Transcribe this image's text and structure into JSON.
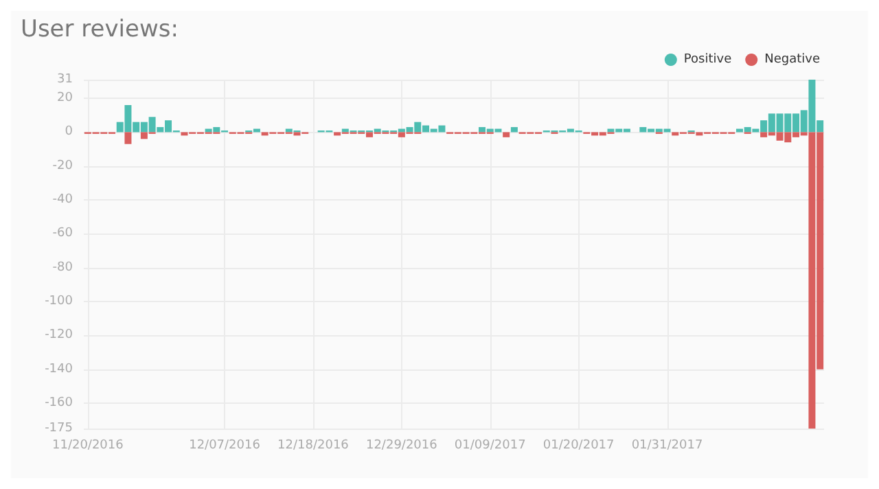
{
  "chart_data": {
    "type": "bar",
    "title": "User reviews:",
    "x": [
      "2016-11-20",
      "2016-11-21",
      "2016-11-22",
      "2016-11-23",
      "2016-11-24",
      "2016-11-25",
      "2016-11-26",
      "2016-11-27",
      "2016-11-28",
      "2016-11-29",
      "2016-11-30",
      "2016-12-01",
      "2016-12-02",
      "2016-12-03",
      "2016-12-04",
      "2016-12-05",
      "2016-12-06",
      "2016-12-07",
      "2016-12-08",
      "2016-12-09",
      "2016-12-10",
      "2016-12-11",
      "2016-12-12",
      "2016-12-13",
      "2016-12-14",
      "2016-12-15",
      "2016-12-16",
      "2016-12-17",
      "2016-12-18",
      "2016-12-19",
      "2016-12-20",
      "2016-12-21",
      "2016-12-22",
      "2016-12-23",
      "2016-12-24",
      "2016-12-25",
      "2016-12-26",
      "2016-12-27",
      "2016-12-28",
      "2016-12-29",
      "2016-12-30",
      "2016-12-31",
      "2017-01-01",
      "2017-01-02",
      "2017-01-03",
      "2017-01-04",
      "2017-01-05",
      "2017-01-06",
      "2017-01-07",
      "2017-01-08",
      "2017-01-09",
      "2017-01-10",
      "2017-01-11",
      "2017-01-12",
      "2017-01-13",
      "2017-01-14",
      "2017-01-15",
      "2017-01-16",
      "2017-01-17",
      "2017-01-18",
      "2017-01-19",
      "2017-01-20",
      "2017-01-21",
      "2017-01-22",
      "2017-01-23",
      "2017-01-24",
      "2017-01-25",
      "2017-01-26",
      "2017-01-27",
      "2017-01-28",
      "2017-01-29",
      "2017-01-30",
      "2017-01-31",
      "2017-02-01",
      "2017-02-02",
      "2017-02-03",
      "2017-02-04",
      "2017-02-05",
      "2017-02-06",
      "2017-02-07",
      "2017-02-08",
      "2017-02-09",
      "2017-02-10",
      "2017-02-11",
      "2017-02-12",
      "2017-02-13",
      "2017-02-14",
      "2017-02-15",
      "2017-02-16",
      "2017-02-17",
      "2017-02-18",
      "2017-02-19"
    ],
    "series": [
      {
        "name": "Positive",
        "color": "#4dbdb1",
        "values": [
          0,
          0,
          0,
          0,
          6,
          16,
          6,
          6,
          9,
          3,
          7,
          1,
          0,
          0,
          0,
          2,
          3,
          1,
          0,
          0,
          1,
          2,
          0,
          0,
          0,
          2,
          1,
          0,
          0,
          1,
          1,
          0,
          2,
          1,
          1,
          1,
          2,
          1,
          1,
          2,
          3,
          6,
          4,
          2,
          4,
          0,
          0,
          0,
          0,
          3,
          2,
          2,
          0,
          3,
          0,
          0,
          0,
          1,
          1,
          1,
          2,
          1,
          0,
          0,
          0,
          2,
          2,
          2,
          0,
          3,
          2,
          2,
          2,
          0,
          0,
          1,
          0,
          0,
          0,
          0,
          0,
          2,
          3,
          2,
          7,
          11,
          11,
          11,
          11,
          13,
          31,
          7
        ]
      },
      {
        "name": "Negative",
        "color": "#d95f5e",
        "values": [
          -1,
          -1,
          -1,
          -1,
          0,
          -7,
          0,
          -4,
          -1,
          0,
          0,
          0,
          -2,
          -1,
          -1,
          -1,
          -1,
          0,
          -1,
          -1,
          -1,
          0,
          -2,
          -1,
          -1,
          -1,
          -2,
          -1,
          0,
          0,
          0,
          -2,
          -1,
          -1,
          -1,
          -3,
          -1,
          -1,
          -1,
          -3,
          -1,
          -1,
          0,
          0,
          0,
          -1,
          -1,
          -1,
          -1,
          -1,
          -1,
          0,
          -3,
          0,
          -1,
          -1,
          -1,
          0,
          -1,
          0,
          0,
          0,
          -1,
          -2,
          -2,
          -1,
          0,
          0,
          0,
          0,
          0,
          -1,
          0,
          -2,
          -1,
          -1,
          -2,
          -1,
          -1,
          -1,
          -1,
          0,
          -1,
          0,
          -3,
          -2,
          -5,
          -6,
          -3,
          -2,
          -175,
          -140
        ]
      }
    ],
    "xlim": [
      "2016-11-19T12:00",
      "2017-02-19T12:00"
    ],
    "xticks": [
      {
        "value": "2016-11-20",
        "label": "11/20/2016"
      },
      {
        "value": "2016-12-07",
        "label": "12/07/2016"
      },
      {
        "value": "2016-12-18",
        "label": "12/18/2016"
      },
      {
        "value": "2016-12-29",
        "label": "12/29/2016"
      },
      {
        "value": "2017-01-09",
        "label": "01/09/2017"
      },
      {
        "value": "2017-01-20",
        "label": "01/20/2017"
      },
      {
        "value": "2017-01-31",
        "label": "01/31/2017"
      }
    ],
    "ylim": [
      -175,
      31
    ],
    "yticks": [
      -175,
      -160,
      -140,
      -120,
      -100,
      -80,
      -60,
      -40,
      -20,
      0,
      20,
      31
    ],
    "grid": true,
    "legend": "top right"
  }
}
